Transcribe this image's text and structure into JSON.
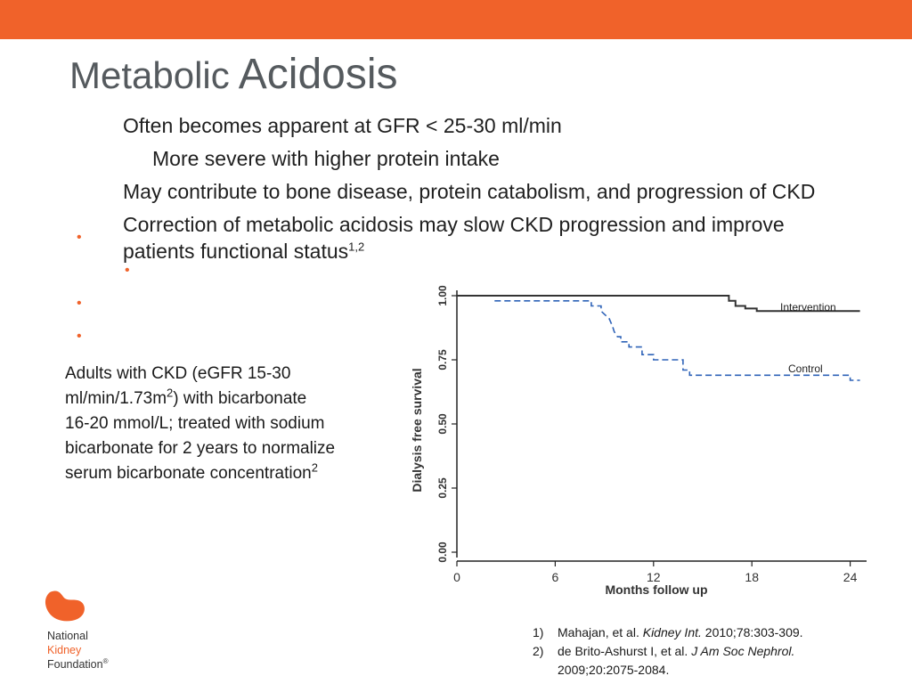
{
  "slide": {
    "title_part1": "Metabolic",
    "title_part2": "Acidosis",
    "bullets": [
      {
        "text": "Often becomes apparent at GFR < 25-30 ml/min"
      },
      {
        "text": "More severe with higher protein intake"
      },
      {
        "text": "May contribute to bone disease, protein catabolism, and progression of CKD"
      },
      {
        "text_line1": "Correction of metabolic acidosis may slow CKD progression and improve",
        "text_line2": "patients functional status",
        "sup": "1,2"
      }
    ],
    "side_text": {
      "line1": "Adults with CKD (eGFR 15-30",
      "line2_a": "ml/min/1.73m",
      "line2_sup": "2",
      "line2_b": ") with bicarbonate",
      "line3": "16-20 mmol/L; treated with sodium",
      "line4": "bicarbonate for 2 years to normalize",
      "line5": "serum bicarbonate concentration",
      "line5_sup": "2"
    },
    "references": [
      {
        "num": "1)",
        "authors": "Mahajan, et al.",
        "journal": "Kidney Int.",
        "details": "2010;78:303-309."
      },
      {
        "num": "2)",
        "authors": "de Brito-Ashurst I, et al.",
        "journal": "J Am Soc Nephrol.",
        "details": "2009;20:2075-2084."
      }
    ],
    "logo": {
      "line1": "National",
      "line2": "Kidney",
      "line3": "Foundation",
      "reg": "®"
    },
    "colors": {
      "accent": "#f0622a",
      "title": "#555a5e",
      "intervention": "#333333",
      "control": "#2f63b8"
    }
  },
  "chart_data": {
    "type": "line",
    "title": "",
    "xlabel": "Months follow up",
    "ylabel": "Dialysis free survival",
    "xlim": [
      0,
      25
    ],
    "ylim": [
      0,
      1.0
    ],
    "x_ticks": [
      0,
      6,
      12,
      18,
      24
    ],
    "y_ticks": [
      0.0,
      0.25,
      0.5,
      0.75,
      1.0
    ],
    "x_tick_labels": [
      "0",
      "6",
      "12",
      "18",
      "24"
    ],
    "y_tick_labels": [
      "0.00",
      "0.25",
      "0.50",
      "0.75",
      "1.00"
    ],
    "series": [
      {
        "name": "Intervention",
        "style": "solid",
        "x": [
          0,
          16.6,
          16.6,
          17,
          17,
          17.6,
          17.6,
          18.3,
          18.3,
          24.6
        ],
        "y": [
          1.0,
          1.0,
          0.98,
          0.98,
          0.96,
          0.96,
          0.95,
          0.95,
          0.94,
          0.94
        ]
      },
      {
        "name": "Control",
        "style": "dashed",
        "x": [
          2.3,
          8.2,
          8.2,
          8.8,
          8.8,
          9.3,
          9.5,
          9.6,
          9.8,
          10.0,
          10.0,
          10.5,
          10.5,
          11.3,
          11.3,
          12.0,
          12.0,
          13.8,
          13.8,
          14.2,
          14.2,
          24.0,
          24.0,
          24.6
        ],
        "y": [
          0.98,
          0.98,
          0.96,
          0.96,
          0.94,
          0.91,
          0.88,
          0.86,
          0.84,
          0.84,
          0.82,
          0.82,
          0.8,
          0.8,
          0.77,
          0.77,
          0.75,
          0.75,
          0.71,
          0.71,
          0.69,
          0.69,
          0.67,
          0.67
        ]
      }
    ]
  }
}
